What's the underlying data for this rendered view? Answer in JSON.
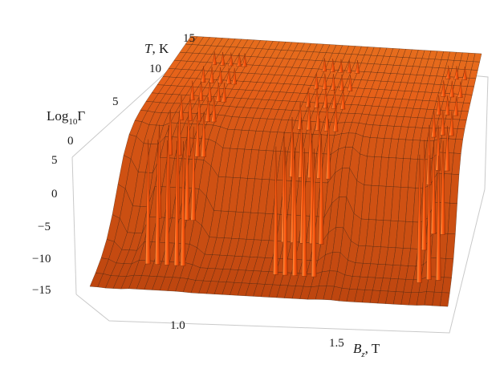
{
  "chart_data": {
    "type": "surface3d",
    "title": "",
    "axes": {
      "x": {
        "label": "B",
        "label_sub": "z",
        "label_unit": ", T",
        "ticks": [
          "1.0",
          "1.5"
        ],
        "range": [
          0.8,
          1.9
        ]
      },
      "y": {
        "label": "T",
        "label_unit": ", K",
        "ticks": [
          "0",
          "5",
          "10",
          "15"
        ],
        "range": [
          0,
          15
        ]
      },
      "z": {
        "label_prefix": "Log",
        "label_sub": "10",
        "label_suffix": "Γ",
        "ticks": [
          "5",
          "0",
          "−15",
          "−10",
          "−5"
        ],
        "tick_values": [
          5,
          0,
          -15,
          -10,
          -5
        ],
        "range": [
          -15,
          5
        ]
      }
    },
    "description_points": {
      "floor_value": -15,
      "plateau_value": 2.5,
      "floor_regions_Bz": [
        [
          0.82,
          0.92
        ],
        [
          1.08,
          1.5
        ],
        [
          1.55,
          1.82
        ]
      ],
      "resonance_Bz": [
        0.95,
        0.98,
        1.01,
        1.04,
        1.06,
        1.35,
        1.38,
        1.41,
        1.44,
        1.47,
        1.8,
        1.83,
        1.86
      ]
    },
    "grid": true,
    "colors": {
      "surface_light": "#ff8a2a",
      "surface_mid": "#e0661a",
      "surface_dark": "#9a3a0a",
      "box": "#c8c8c8",
      "mesh": "#3a1a08"
    }
  }
}
